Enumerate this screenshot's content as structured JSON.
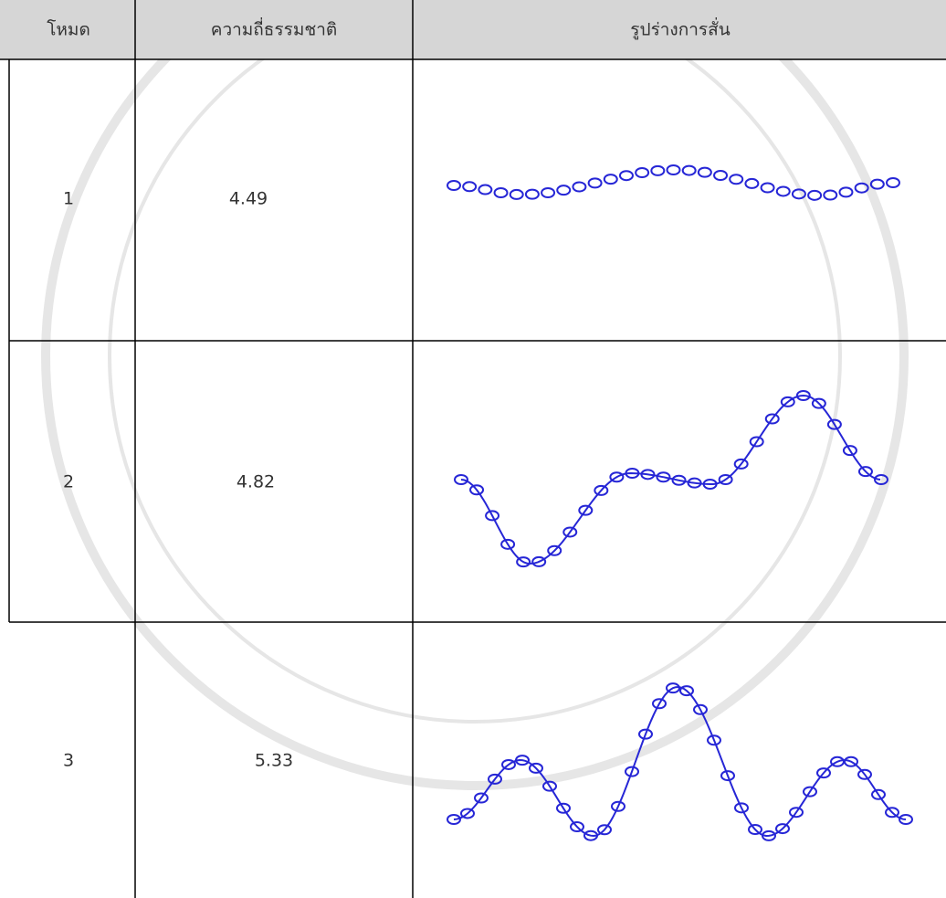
{
  "table": {
    "header": [
      "โหมด",
      "ความถี่ธรรมชาติ",
      "รูปร่างการสั่น"
    ],
    "rows": [
      [
        "1",
        "4.49"
      ],
      [
        "2",
        "4.82"
      ],
      [
        "3",
        "5.33"
      ]
    ]
  }
}
